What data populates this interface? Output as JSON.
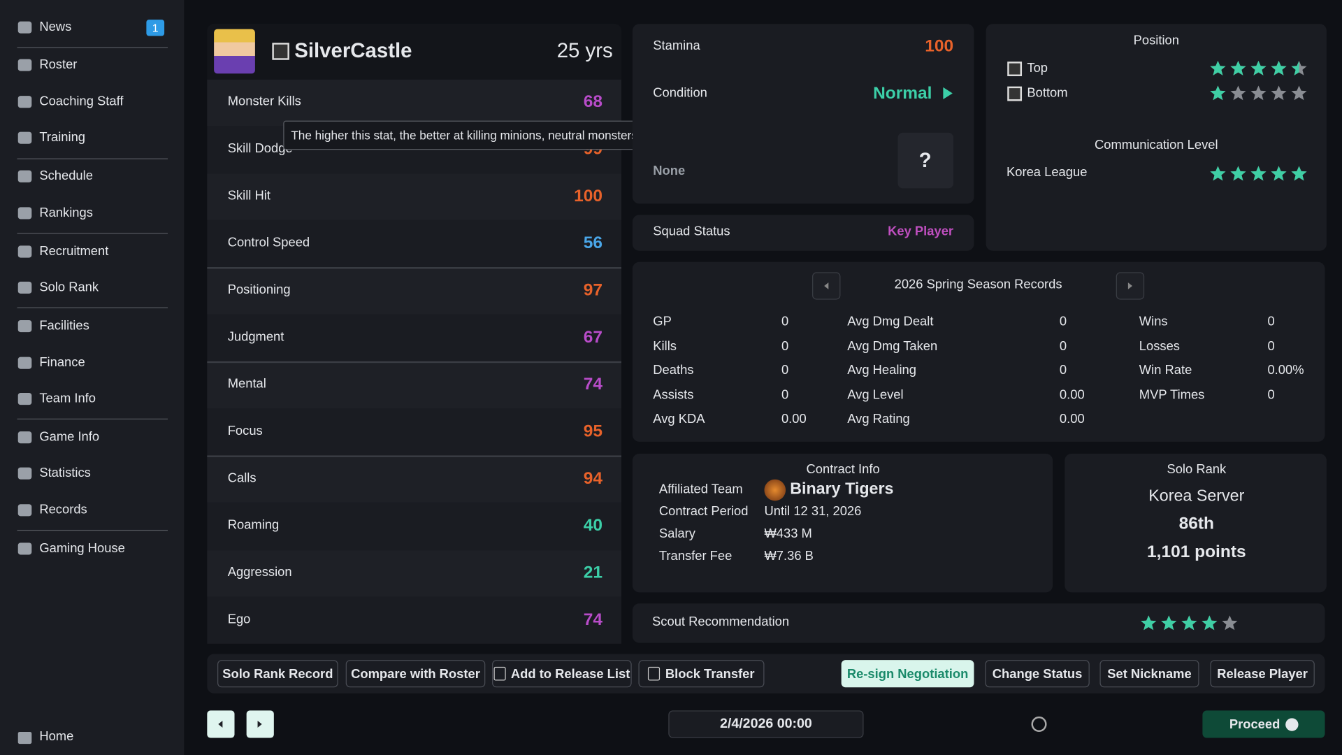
{
  "sidebar": {
    "items": [
      "News",
      "Roster",
      "Coaching Staff",
      "Training",
      "Schedule",
      "Rankings",
      "Recruitment",
      "Solo Rank",
      "Facilities",
      "Finance",
      "Team Info",
      "Game Info",
      "Statistics",
      "Records",
      "Gaming House"
    ],
    "news_badge": 1,
    "home": "Home"
  },
  "player": {
    "name": "SilverCastle",
    "age": "25 yrs"
  },
  "stats": [
    {
      "label": "Monster Kills",
      "value": 68,
      "color": "#b84cc9"
    },
    {
      "label": "Skill Dodge",
      "value": 99,
      "color": "#e8622a"
    },
    {
      "label": "Skill Hit",
      "value": 100,
      "color": "#e8622a"
    },
    {
      "label": "Control Speed",
      "value": 56,
      "color": "#4aa6e8"
    },
    {
      "label": "Positioning",
      "value": 97,
      "color": "#e8622a"
    },
    {
      "label": "Judgment",
      "value": 67,
      "color": "#b84cc9"
    },
    {
      "label": "Mental",
      "value": 74,
      "color": "#b84cc9"
    },
    {
      "label": "Focus",
      "value": 95,
      "color": "#e8622a"
    },
    {
      "label": "Calls",
      "value": 94,
      "color": "#e8622a"
    },
    {
      "label": "Roaming",
      "value": 40,
      "color": "#3ccfa8"
    },
    {
      "label": "Aggression",
      "value": 21,
      "color": "#3ccfa8"
    },
    {
      "label": "Ego",
      "value": 74,
      "color": "#b84cc9"
    }
  ],
  "tooltip": "The higher this stat, the better at killing minions, neutral monsters, and epic monsters.",
  "condition": {
    "stamina_label": "Stamina",
    "stamina": 100,
    "condition_label": "Condition",
    "condition": "Normal",
    "trait": "None",
    "trait_icon": "?"
  },
  "squad": {
    "label": "Squad Status",
    "value": "Key Player"
  },
  "position": {
    "title": "Position",
    "roles": [
      {
        "label": "Top",
        "rating": 4.5
      },
      {
        "label": "Bottom",
        "rating": 1
      }
    ],
    "communication_title": "Communication Level",
    "communication": [
      {
        "label": "Korea League",
        "rating": 5
      }
    ],
    "max_rating": 5
  },
  "season": {
    "title": "2026 Spring Season Records",
    "columns": [
      [
        [
          "GP",
          "0"
        ],
        [
          "Kills",
          "0"
        ],
        [
          "Deaths",
          "0"
        ],
        [
          "Assists",
          "0"
        ],
        [
          "Avg KDA",
          "0.00"
        ]
      ],
      [
        [
          "Avg Dmg Dealt",
          "0"
        ],
        [
          "Avg Dmg Taken",
          "0"
        ],
        [
          "Avg Healing",
          "0"
        ],
        [
          "Avg Level",
          "0.00"
        ],
        [
          "Avg Rating",
          "0.00"
        ]
      ],
      [
        [
          "Wins",
          "0"
        ],
        [
          "Losses",
          "0"
        ],
        [
          "Win Rate",
          "0.00%"
        ],
        [
          "MVP Times",
          "0"
        ]
      ]
    ]
  },
  "contract": {
    "title": "Contract Info",
    "rows": [
      [
        "Affiliated Team",
        "Binary Tigers"
      ],
      [
        "Contract Period",
        "Until 12 31, 2026"
      ],
      [
        "Salary",
        "₩433 M"
      ],
      [
        "Transfer Fee",
        "₩7.36 B"
      ]
    ]
  },
  "solo_rank": {
    "title": "Solo Rank",
    "server": "Korea Server",
    "rank": "86th",
    "points": "1,101 points"
  },
  "scout": {
    "label": "Scout Recommendation",
    "rating": 4
  },
  "actions": [
    "Solo Rank Record",
    "Compare with Roster",
    "Add to Release List",
    "Block Transfer",
    "Re-sign Negotiation",
    "Change Status",
    "Set Nickname",
    "Release Player"
  ],
  "footer": {
    "date": "2/4/2026 00:00",
    "proceed": "Proceed"
  }
}
